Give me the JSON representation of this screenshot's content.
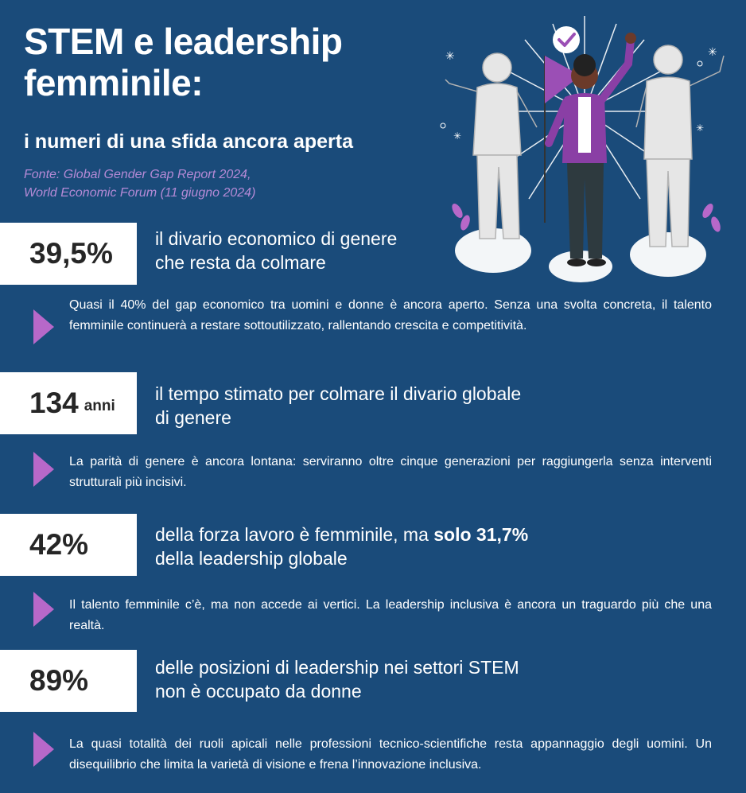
{
  "header": {
    "title_line1": "STEM e leadership",
    "title_line2": "femminile:",
    "subtitle": "i numeri di una sfida ancora aperta",
    "source_line1": "Fonte: Global Gender Gap Report 2024,",
    "source_line2": "World Economic Forum (11 giugno 2024)"
  },
  "colors": {
    "background": "#1a4b7a",
    "accent_purple": "#b768c9",
    "box": "#ffffff"
  },
  "stats": [
    {
      "value": "39,5%",
      "unit": "",
      "headline_line1": "il divario economico di genere",
      "headline_line2": "che resta da colmare",
      "description": "Quasi il 40% del gap economico tra uomini e donne è ancora aperto. Senza una svolta concreta, il talento femminile continuerà a restare sottoutilizzato, rallentando crescita e competitività."
    },
    {
      "value": "134",
      "unit": "anni",
      "headline_line1": "il tempo stimato per colmare il divario globale",
      "headline_line2": "di genere",
      "description": "La parità di genere è ancora lontana: serviranno oltre cinque generazioni per raggiungerla senza interventi strutturali più incisivi."
    },
    {
      "value": "42%",
      "unit": "",
      "headline_line1_pre": "della forza lavoro è femminile, ma ",
      "headline_line1_bold": "solo 31,7%",
      "headline_line2": "della leadership globale",
      "description": "Il talento femminile c’è, ma non accede ai vertici. La leadership inclusiva è ancora un traguardo più che una realtà."
    },
    {
      "value": "89%",
      "unit": "",
      "headline_line1": "delle posizioni di leadership nei settori STEM",
      "headline_line2": "non è occupato da donne",
      "description": "La quasi totalità dei ruoli apicali nelle professioni tecnico-scientifiche resta appannaggio degli uomini. Un disequilibrio che limita la varietà di visione e frena l’innovazione inclusiva."
    }
  ],
  "illustration": {
    "icons": [
      "checkmark-badge-icon",
      "flag-icon",
      "sparkle-icon",
      "leaf-icon"
    ]
  }
}
